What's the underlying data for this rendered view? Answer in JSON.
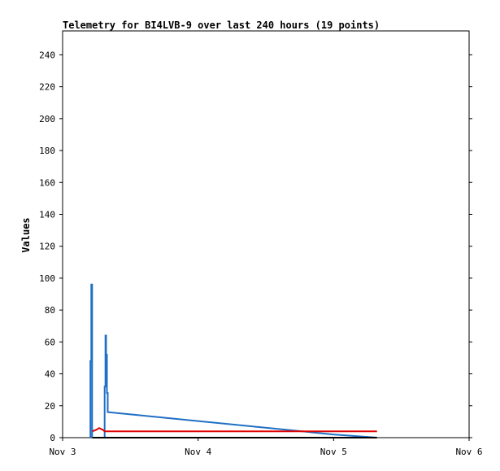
{
  "chart_data": {
    "type": "line",
    "title": "Telemetry for BI4LVB-9 over last 240 hours (19 points)",
    "ylabel": "Values",
    "xlabel": "",
    "ylim": [
      0,
      255
    ],
    "xlim": [
      0,
      3
    ],
    "x_ticks": [
      {
        "x": 0,
        "label": "Nov 3"
      },
      {
        "x": 1,
        "label": "Nov 4"
      },
      {
        "x": 2,
        "label": "Nov 5"
      },
      {
        "x": 3,
        "label": "Nov 6"
      }
    ],
    "y_ticks": [
      0,
      20,
      40,
      60,
      80,
      100,
      120,
      140,
      160,
      180,
      200,
      220,
      240
    ],
    "grid": false,
    "series": [
      {
        "color": "#1f6fc4",
        "points": [
          [
            0.205,
            0
          ],
          [
            0.205,
            48
          ],
          [
            0.212,
            48
          ],
          [
            0.212,
            96
          ],
          [
            0.218,
            96
          ],
          [
            0.218,
            0
          ],
          [
            0.31,
            0
          ],
          [
            0.31,
            32
          ],
          [
            0.316,
            32
          ],
          [
            0.316,
            64
          ],
          [
            0.321,
            64
          ],
          [
            0.321,
            52
          ],
          [
            0.327,
            52
          ],
          [
            0.327,
            28
          ],
          [
            0.333,
            28
          ],
          [
            0.333,
            16
          ],
          [
            2.0,
            2
          ],
          [
            2.32,
            0
          ]
        ]
      },
      {
        "color": "#e00000",
        "points": [
          [
            0.22,
            4
          ],
          [
            0.25,
            5
          ],
          [
            0.27,
            6
          ],
          [
            0.295,
            5
          ],
          [
            0.31,
            4
          ],
          [
            2.32,
            4
          ]
        ]
      },
      {
        "color": "#000000",
        "points": [
          [
            0.22,
            0
          ],
          [
            2.32,
            0
          ]
        ]
      }
    ]
  }
}
